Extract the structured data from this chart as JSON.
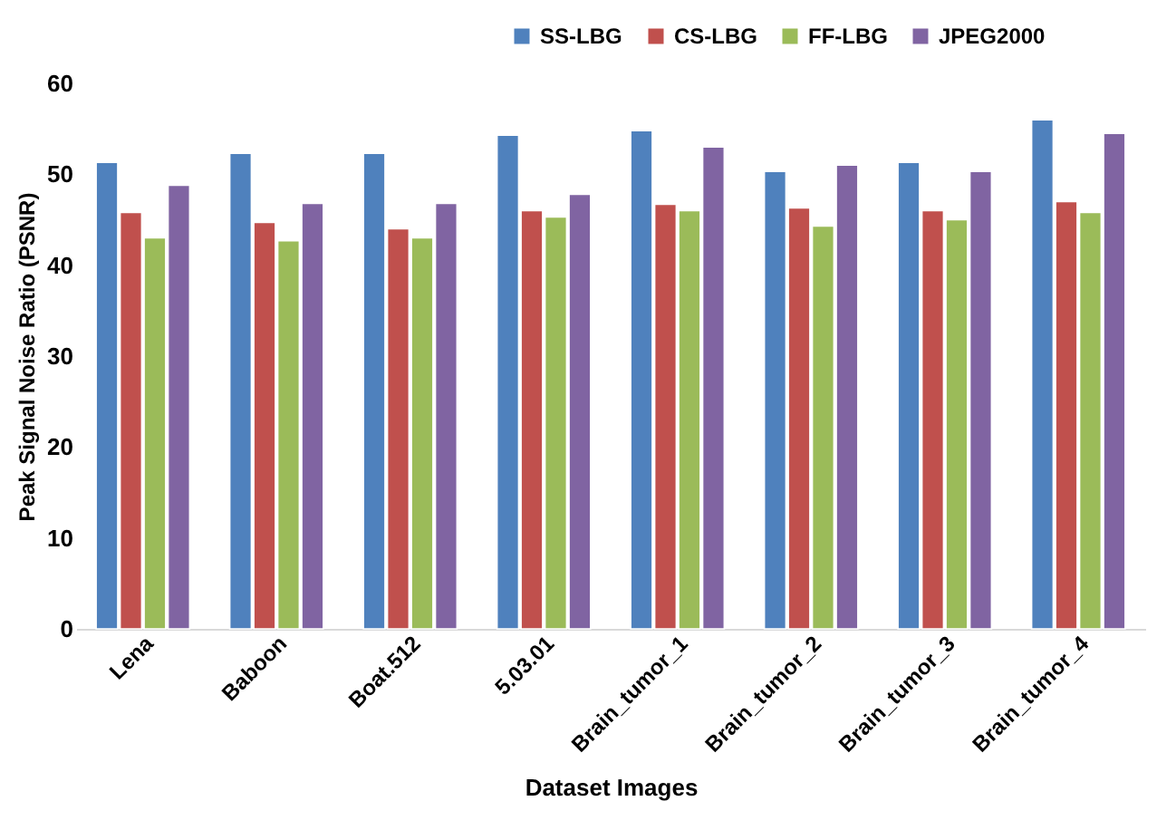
{
  "chart_data": {
    "type": "bar",
    "xlabel": "Dataset Images",
    "ylabel": "Peak Signal Noise Ratio (PSNR)",
    "categories": [
      "Lena",
      "Baboon",
      "Boat.512",
      "5.03.01",
      "Brain_tumor_1",
      "Brain_tumor_2",
      "Brain_tumor_3",
      "Brain_tumor_4"
    ],
    "series": [
      {
        "name": "SS-LBG",
        "color": "#4f81bd",
        "values": [
          51.3,
          52.3,
          52.3,
          54.3,
          54.8,
          50.3,
          51.3,
          56.0
        ]
      },
      {
        "name": "CS-LBG",
        "color": "#c0504d",
        "values": [
          45.8,
          44.7,
          44.0,
          46.0,
          46.7,
          46.3,
          46.0,
          47.0
        ]
      },
      {
        "name": "FF-LBG",
        "color": "#9bbb59",
        "values": [
          43.0,
          42.7,
          43.0,
          45.3,
          46.0,
          44.3,
          45.0,
          45.8
        ]
      },
      {
        "name": "JPEG2000",
        "color": "#8064a2",
        "values": [
          48.8,
          46.8,
          46.8,
          47.8,
          53.0,
          51.0,
          50.3,
          54.5
        ]
      }
    ],
    "ylim": [
      0,
      60
    ],
    "yticks": [
      0,
      10,
      20,
      30,
      40,
      50,
      60
    ],
    "grid": false,
    "legend": "top right"
  }
}
